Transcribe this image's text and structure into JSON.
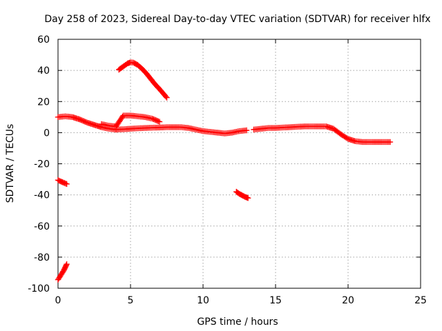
{
  "chart_data": {
    "type": "scatter",
    "title": "Day 258 of 2023, Sidereal Day-to-day VTEC variation (SDTVAR) for receiver hlfx",
    "xlabel": "GPS time / hours",
    "ylabel": "SDTVAR / TECUs",
    "xlim": [
      0,
      25
    ],
    "ylim": [
      -100,
      60
    ],
    "xticks": [
      0,
      5,
      10,
      15,
      20,
      25
    ],
    "yticks": [
      -100,
      -80,
      -60,
      -40,
      -20,
      0,
      20,
      40,
      60
    ],
    "grid": true,
    "marker": "+",
    "color": "#ff0000",
    "series": [
      {
        "name": "segment-main-early",
        "x": [
          0.0,
          0.5,
          1.0,
          1.5,
          2.0,
          2.5,
          3.0,
          3.5,
          4.0
        ],
        "y": [
          10,
          10.5,
          10,
          8.5,
          6.5,
          5,
          3.5,
          2.5,
          2
        ]
      },
      {
        "name": "segment-main-mid",
        "x": [
          4.0,
          4.5,
          5.0,
          5.5,
          6.0,
          6.5,
          7.0,
          7.5,
          8.0,
          8.5,
          9.0,
          9.5,
          10.0,
          10.5,
          11.0,
          11.5,
          12.0,
          12.5,
          13.0
        ],
        "y": [
          2,
          2.2,
          2.5,
          2.8,
          3,
          3.2,
          3.3,
          3.5,
          3.5,
          3.5,
          3,
          2,
          1,
          0.5,
          0,
          -0.5,
          0,
          1,
          1.5
        ]
      },
      {
        "name": "segment-main-late",
        "x": [
          13.5,
          14.0,
          14.5,
          15.0,
          15.5,
          16.0,
          16.5,
          17.0,
          17.5,
          18.0,
          18.5,
          19.0,
          19.5,
          20.0,
          20.5,
          21.0,
          21.5,
          22.0,
          22.5,
          22.9
        ],
        "y": [
          2,
          2.5,
          3,
          3,
          3.3,
          3.5,
          3.8,
          4,
          4,
          4,
          4,
          2.5,
          -1,
          -4,
          -5.5,
          -6,
          -6,
          -6,
          -6,
          -6
        ]
      },
      {
        "name": "segment-secondary",
        "x": [
          3.0,
          3.5,
          4.0,
          4.5,
          5.0,
          5.5,
          6.0,
          6.5,
          7.0
        ],
        "y": [
          5.5,
          4.5,
          4,
          11,
          11,
          10.5,
          10,
          9,
          7
        ]
      },
      {
        "name": "segment-arc",
        "x": [
          4.2,
          4.5,
          4.8,
          5.0,
          5.2,
          5.5,
          5.8,
          6.1,
          6.4,
          6.7,
          7.0,
          7.5
        ],
        "y": [
          40.5,
          42.5,
          44.5,
          45.2,
          45,
          43.5,
          41,
          38,
          34.5,
          31,
          28,
          22.5
        ]
      },
      {
        "name": "segment-neg30",
        "x": [
          0.0,
          0.15,
          0.3,
          0.45,
          0.6
        ],
        "y": [
          -30.5,
          -31.2,
          -31.8,
          -32.4,
          -33
        ]
      },
      {
        "name": "segment-neg40",
        "x": [
          12.3,
          12.5,
          12.7,
          12.9,
          13.1
        ],
        "y": [
          -38,
          -39.3,
          -40.3,
          -41.3,
          -42
        ]
      },
      {
        "name": "segment-neg90",
        "x": [
          0.0,
          0.1,
          0.2,
          0.3,
          0.4,
          0.5,
          0.6
        ],
        "y": [
          -94.5,
          -93,
          -91.5,
          -90,
          -88.5,
          -86.5,
          -84.5
        ]
      }
    ]
  }
}
